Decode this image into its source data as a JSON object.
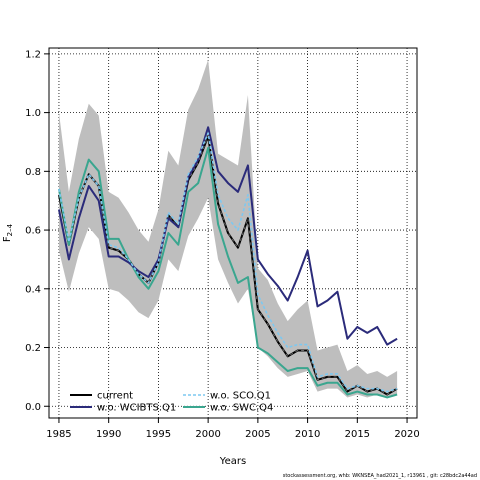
{
  "chart_data": {
    "type": "line",
    "ylabel": "F",
    "ylabel_sub": "2–4",
    "xlabel": "Years",
    "xlim": [
      1984,
      2021
    ],
    "ylim": [
      -0.04,
      1.22
    ],
    "xticks": [
      1985,
      1990,
      1995,
      2000,
      2005,
      2010,
      2015,
      2020
    ],
    "yticks": [
      0.0,
      0.2,
      0.4,
      0.6,
      0.8,
      1.0,
      1.2
    ],
    "grid": true,
    "legend_position": "bottom-left",
    "x": [
      1985,
      1986,
      1987,
      1988,
      1989,
      1990,
      1991,
      1992,
      1993,
      1994,
      1995,
      1996,
      1997,
      1998,
      1999,
      2000,
      2001,
      2002,
      2003,
      2004,
      2005,
      2006,
      2007,
      2008,
      2009,
      2010,
      2011,
      2012,
      2013,
      2014,
      2015,
      2016,
      2017,
      2018,
      2019
    ],
    "band": {
      "color": "#bebebe",
      "upper": [
        1.0,
        0.73,
        0.91,
        1.03,
        0.99,
        0.73,
        0.71,
        0.66,
        0.6,
        0.56,
        0.67,
        0.87,
        0.82,
        1.01,
        1.08,
        1.18,
        0.86,
        0.84,
        0.82,
        1.06,
        0.47,
        0.43,
        0.35,
        0.29,
        0.33,
        0.36,
        0.19,
        0.2,
        0.21,
        0.12,
        0.14,
        0.11,
        0.12,
        0.1,
        0.12
      ],
      "lower": [
        0.53,
        0.39,
        0.52,
        0.61,
        0.57,
        0.4,
        0.39,
        0.36,
        0.32,
        0.3,
        0.36,
        0.5,
        0.46,
        0.58,
        0.64,
        0.71,
        0.5,
        0.42,
        0.35,
        0.4,
        0.2,
        0.17,
        0.13,
        0.1,
        0.11,
        0.12,
        0.05,
        0.06,
        0.06,
        0.03,
        0.04,
        0.03,
        0.04,
        0.03,
        0.04
      ]
    },
    "series": [
      {
        "name": "current",
        "color": "#000000",
        "width": 2,
        "dash": "",
        "values": [
          0.72,
          0.55,
          0.71,
          0.79,
          0.75,
          0.54,
          0.53,
          0.5,
          0.45,
          0.42,
          0.49,
          0.65,
          0.61,
          0.77,
          0.83,
          0.92,
          0.69,
          0.59,
          0.54,
          0.64,
          0.33,
          0.28,
          0.22,
          0.17,
          0.19,
          0.19,
          0.09,
          0.1,
          0.1,
          0.05,
          0.07,
          0.05,
          0.06,
          0.04,
          0.06
        ]
      },
      {
        "name": "w.o. WCIBTS.Q1",
        "color": "#2b2b7a",
        "width": 2,
        "dash": "",
        "values": [
          0.67,
          0.5,
          0.64,
          0.75,
          0.7,
          0.51,
          0.51,
          0.49,
          0.46,
          0.44,
          0.5,
          0.64,
          0.61,
          0.78,
          0.84,
          0.95,
          0.8,
          0.76,
          0.73,
          0.82,
          0.5,
          0.45,
          0.41,
          0.36,
          0.44,
          0.53,
          0.34,
          0.36,
          0.39,
          0.23,
          0.27,
          0.25,
          0.27,
          0.21,
          0.23
        ]
      },
      {
        "name": "w.o. SCO.Q1",
        "color": "#7dc8f0",
        "width": 1.6,
        "dash": "3,2",
        "values": [
          0.74,
          0.56,
          0.71,
          0.79,
          0.75,
          0.55,
          0.54,
          0.5,
          0.45,
          0.42,
          0.49,
          0.66,
          0.62,
          0.79,
          0.85,
          0.93,
          0.72,
          0.64,
          0.6,
          0.72,
          0.38,
          0.31,
          0.25,
          0.2,
          0.21,
          0.21,
          0.1,
          0.11,
          0.11,
          0.06,
          0.07,
          0.06,
          0.06,
          0.05,
          0.06
        ]
      },
      {
        "name": "w.o. SWC.Q4",
        "color": "#3aa68f",
        "width": 2,
        "dash": "",
        "values": [
          0.74,
          0.55,
          0.73,
          0.84,
          0.8,
          0.57,
          0.57,
          0.5,
          0.44,
          0.4,
          0.46,
          0.59,
          0.55,
          0.73,
          0.76,
          0.88,
          0.62,
          0.51,
          0.42,
          0.44,
          0.2,
          0.18,
          0.15,
          0.12,
          0.13,
          0.13,
          0.07,
          0.08,
          0.08,
          0.04,
          0.05,
          0.04,
          0.04,
          0.03,
          0.04
        ]
      }
    ]
  },
  "footer": "stockassessment.org, whb: WKNSEA_had2021_1, r13961 , git: c28bdc2a44ad"
}
